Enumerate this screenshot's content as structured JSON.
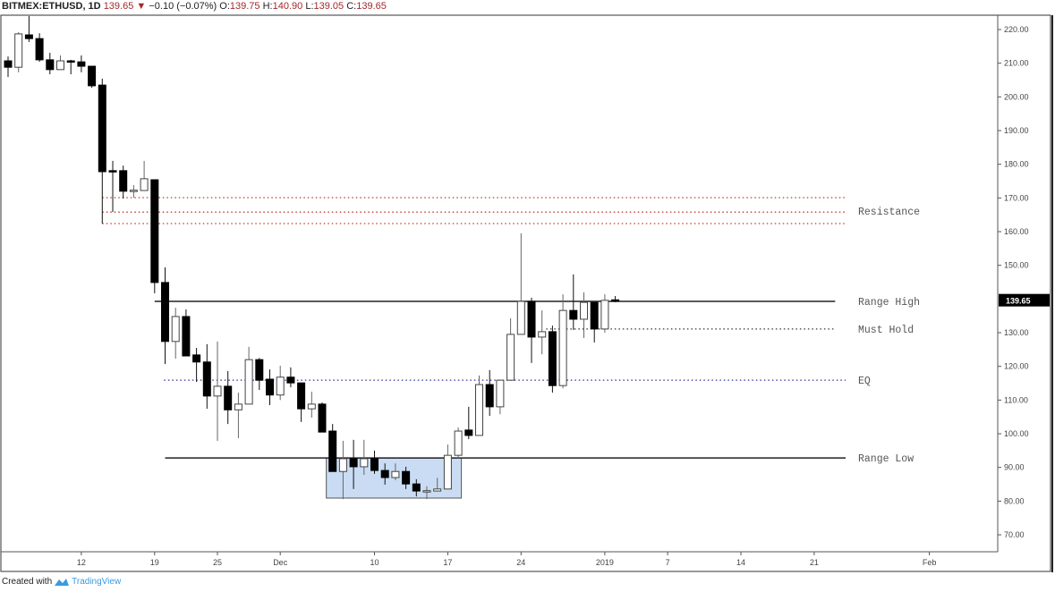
{
  "header": {
    "symbol": "BITMEX:ETHUSD, 1D",
    "last": "139.65",
    "change": "−0.10 (−0.07%)",
    "o_label": "O:",
    "o": "139.75",
    "h_label": "H:",
    "h": "140.90",
    "l_label": "L:",
    "l": "139.05",
    "c_label": "C:",
    "c": "139.65",
    "direction_icon": "down-triangle-icon"
  },
  "footer": {
    "created_with": "Created with",
    "brand": "TradingView"
  },
  "colors": {
    "resistance": "#c0392b",
    "eq": "#2c2c9c",
    "box_fill": "#c9dcf3",
    "box_stroke": "#555555",
    "price_red": "#a5282a"
  },
  "chart_data": {
    "type": "candlestick",
    "title": "BITMEX:ETHUSD, 1D",
    "start_date": "2018-11-05",
    "ylim": [
      65,
      224
    ],
    "y_ticks": [
      "220.00",
      "210.00",
      "200.00",
      "190.00",
      "180.00",
      "170.00",
      "160.00",
      "150.00",
      "130.00",
      "120.00",
      "110.00",
      "100.00",
      "90.00",
      "80.00",
      "70.00"
    ],
    "y_tick_values": [
      220,
      210,
      200,
      190,
      180,
      170,
      160,
      150,
      130,
      120,
      110,
      100,
      90,
      80,
      70
    ],
    "last_price_label": "139.65",
    "last_price": 139.65,
    "x_ticks": [
      {
        "label": "12",
        "index": 7
      },
      {
        "label": "19",
        "index": 14
      },
      {
        "label": "25",
        "index": 20
      },
      {
        "label": "Dec",
        "index": 26
      },
      {
        "label": "10",
        "index": 35
      },
      {
        "label": "17",
        "index": 42
      },
      {
        "label": "24",
        "index": 49
      },
      {
        "label": "2019",
        "index": 57
      },
      {
        "label": "7",
        "index": 63
      },
      {
        "label": "14",
        "index": 70
      },
      {
        "label": "21",
        "index": 77
      },
      {
        "label": "Feb",
        "index": 88
      }
    ],
    "candles": [
      [
        210.7,
        212.0,
        205.9,
        208.8
      ],
      [
        208.8,
        219.2,
        207.3,
        218.7
      ],
      [
        218.4,
        224.0,
        216.3,
        217.3
      ],
      [
        217.3,
        218.9,
        210.4,
        211.0
      ],
      [
        211.0,
        213.1,
        206.7,
        208.1
      ],
      [
        208.1,
        212.3,
        208.1,
        210.7
      ],
      [
        210.7,
        211.0,
        206.7,
        210.5
      ],
      [
        210.4,
        212.3,
        207.3,
        209.1
      ],
      [
        209.1,
        209.1,
        202.7,
        203.3
      ],
      [
        203.5,
        205.4,
        162.4,
        177.8
      ],
      [
        178.1,
        181.0,
        165.8,
        178.0
      ],
      [
        178.1,
        179.6,
        169.8,
        172.0
      ],
      [
        172.0,
        173.8,
        170.1,
        172.3
      ],
      [
        172.2,
        181.0,
        172.2,
        175.7
      ],
      [
        175.4,
        175.4,
        141.7,
        144.9
      ],
      [
        144.9,
        149.4,
        120.7,
        127.4
      ],
      [
        127.4,
        137.4,
        122.3,
        134.8
      ],
      [
        134.8,
        136.9,
        123.1,
        123.1
      ],
      [
        123.4,
        125.5,
        115.4,
        121.3
      ],
      [
        121.3,
        126.6,
        107.4,
        111.2
      ],
      [
        111.2,
        127.4,
        97.9,
        114.1
      ],
      [
        114.1,
        118.6,
        102.9,
        107.1
      ],
      [
        107.1,
        112.2,
        98.7,
        108.8
      ],
      [
        108.8,
        125.8,
        108.8,
        122.0
      ],
      [
        122.0,
        122.5,
        113.0,
        115.9
      ],
      [
        116.2,
        119.1,
        108.5,
        111.5
      ],
      [
        111.5,
        120.2,
        110.0,
        116.8
      ],
      [
        116.8,
        119.7,
        113.8,
        115.1
      ],
      [
        115.1,
        115.1,
        103.5,
        107.4
      ],
      [
        107.4,
        112.5,
        104.8,
        108.8
      ],
      [
        108.8,
        109.3,
        100.5,
        100.5
      ],
      [
        100.8,
        102.9,
        88.8,
        88.8
      ],
      [
        88.8,
        97.9,
        80.6,
        92.6
      ],
      [
        92.6,
        98.2,
        83.6,
        90.2
      ],
      [
        90.2,
        98.2,
        87.8,
        92.6
      ],
      [
        92.6,
        95.0,
        88.1,
        89.1
      ],
      [
        89.1,
        91.2,
        84.9,
        87.0
      ],
      [
        87.0,
        91.2,
        86.2,
        88.8
      ],
      [
        88.8,
        90.2,
        83.6,
        85.1
      ],
      [
        85.1,
        86.5,
        81.4,
        83.0
      ],
      [
        83.0,
        84.4,
        80.6,
        83.1
      ],
      [
        83.0,
        86.9,
        83.0,
        83.6
      ],
      [
        83.6,
        96.8,
        83.6,
        93.6
      ],
      [
        93.6,
        101.9,
        92.6,
        100.8
      ],
      [
        101.1,
        108.0,
        98.4,
        99.5
      ],
      [
        99.5,
        117.3,
        99.5,
        114.6
      ],
      [
        114.6,
        118.9,
        105.3,
        108.0
      ],
      [
        108.0,
        115.9,
        105.8,
        115.9
      ],
      [
        115.9,
        134.3,
        115.9,
        129.5
      ],
      [
        129.5,
        159.5,
        129.5,
        139.3
      ],
      [
        139.3,
        140.4,
        121.0,
        128.7
      ],
      [
        128.7,
        136.6,
        123.6,
        130.3
      ],
      [
        130.3,
        132.1,
        112.2,
        114.3
      ],
      [
        114.3,
        141.4,
        113.5,
        136.6
      ],
      [
        136.6,
        147.3,
        130.8,
        134.0
      ],
      [
        134.0,
        142.0,
        128.4,
        139.0
      ],
      [
        139.0,
        139.0,
        127.1,
        131.1
      ],
      [
        131.1,
        141.4,
        130.0,
        139.6
      ],
      [
        139.75,
        140.9,
        139.05,
        139.65
      ]
    ],
    "candle_fields": [
      "open",
      "high",
      "low",
      "close"
    ],
    "levels": [
      {
        "label": "Resistance",
        "prices": [
          170.1,
          165.8,
          162.4
        ],
        "from_index": 9,
        "to_index": 80,
        "style": "dotted",
        "color": "#c0392b"
      },
      {
        "label": "Range High",
        "prices": [
          139.3
        ],
        "from_index": 14,
        "to_index": 79,
        "style": "solid",
        "color": "#222222"
      },
      {
        "label": "Must Hold",
        "prices": [
          131.1
        ],
        "from_index": 51.4,
        "to_index": 79,
        "style": "dotted",
        "color": "#333333"
      },
      {
        "label": "EQ",
        "prices": [
          115.9
        ],
        "from_index": 14.9,
        "to_index": 80,
        "style": "dotted",
        "color": "#2c2c9c"
      },
      {
        "label": "Range Low",
        "prices": [
          92.8
        ],
        "from_index": 15,
        "to_index": 80,
        "style": "solid",
        "color": "#222222"
      }
    ],
    "range_box": {
      "from_index": 30.4,
      "to_index": 43.3,
      "low": 80.9,
      "high": 92.8
    }
  }
}
